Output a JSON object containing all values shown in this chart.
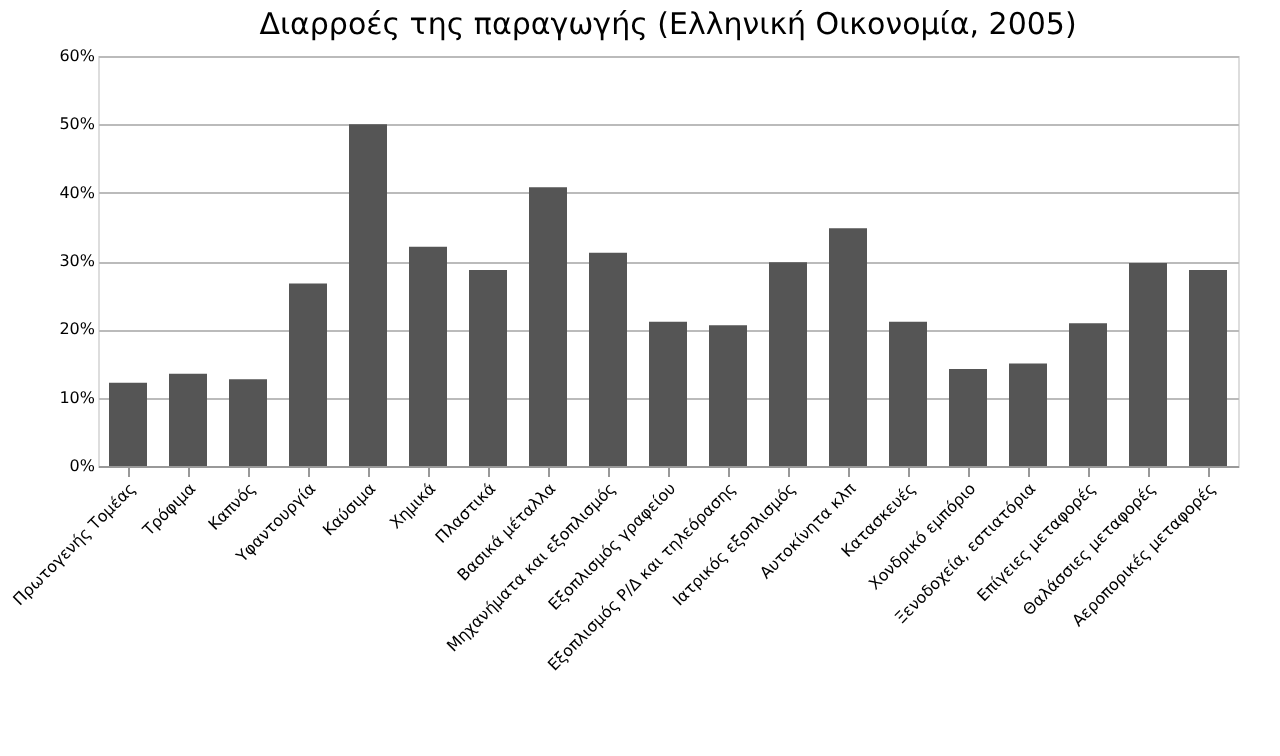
{
  "chart_data": {
    "type": "bar",
    "title": "Διαρροές της παραγωγής (Ελληνική Οικονομία, 2005)",
    "categories": [
      "Πρωτογενής Τομέας",
      "Τρόφιμα",
      "Καπνός",
      "Υφαντουργία",
      "Καύσιμα",
      "Χημικά",
      "Πλαστικά",
      "Βασικά μέταλλα",
      "Μηχανήματα και εξοπλισμός",
      "Εξοπλισμός γραφείου",
      "Εξοπλισμός Ρ/Δ και τηλεόρασης",
      "Ιατρικός εξοπλισμός",
      "Αυτοκίνητα κλπ",
      "Κατασκευές",
      "Χονδρικό εμπόριο",
      "Ξενοδοχεία, εστιατόρια",
      "Επίγειες μεταφορές",
      "Θαλάσσιες μεταφορές",
      "Αεροπορικές μεταφορές"
    ],
    "values": [
      12.2,
      13.5,
      12.7,
      26.7,
      50,
      32.1,
      28.7,
      40.8,
      31.2,
      21.1,
      20.6,
      29.8,
      34.8,
      21.1,
      14.2,
      15.0,
      20.9,
      29.7,
      28.7
    ],
    "color": "#555555",
    "ylim": [
      0,
      60
    ],
    "yticks": [
      {
        "value": 0,
        "label": "0%"
      },
      {
        "value": 10,
        "label": "10%"
      },
      {
        "value": 20,
        "label": "20%"
      },
      {
        "value": 30,
        "label": "30%"
      },
      {
        "value": 40,
        "label": "40%"
      },
      {
        "value": 50,
        "label": "50%"
      },
      {
        "value": 60,
        "label": "60%"
      }
    ],
    "grid": "y"
  }
}
